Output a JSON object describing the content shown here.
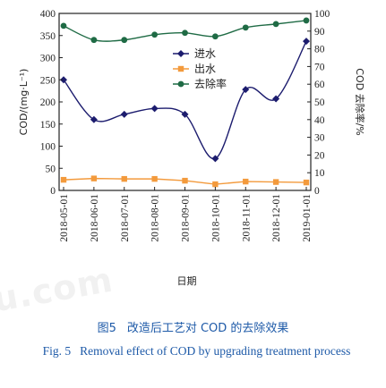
{
  "chart_data": {
    "type": "line",
    "x": [
      "2018-05-01",
      "2018-06-01",
      "2018-07-01",
      "2018-08-01",
      "2018-09-01",
      "2018-10-01",
      "2018-11-01",
      "2018-12-01",
      "2019-01-01"
    ],
    "xlabel": "日期",
    "ylabel": "COD/(mg·L⁻¹)",
    "y2label": "COD 去除率/%",
    "ylim": [
      0,
      400
    ],
    "y2lim": [
      0,
      100
    ],
    "yticks": [
      0,
      50,
      100,
      150,
      200,
      250,
      300,
      350,
      400
    ],
    "y2ticks": [
      0,
      10,
      20,
      30,
      40,
      50,
      60,
      70,
      80,
      90,
      100
    ],
    "legend_placement": "center-right",
    "series": [
      {
        "name": "进水",
        "axis": "left",
        "color": "#1c1c6e",
        "marker": "diamond",
        "smooth": true,
        "values": [
          250,
          160,
          172,
          185,
          172,
          72,
          228,
          207,
          337
        ]
      },
      {
        "name": "出水",
        "axis": "left",
        "color": "#f39a3c",
        "marker": "square",
        "smooth": false,
        "values": [
          24,
          27,
          26,
          26,
          22,
          14,
          20,
          19,
          18
        ]
      },
      {
        "name": "去除率",
        "axis": "right",
        "color": "#1f6b45",
        "marker": "circle",
        "smooth": true,
        "values": [
          93,
          85,
          85,
          88,
          89,
          87,
          92,
          94,
          96
        ]
      }
    ]
  },
  "caption": {
    "cn_number": "图5",
    "cn_text": "改造后工艺对 COD 的去除效果",
    "en_number": "Fig. 5",
    "en_text": "Removal effect of COD by upgrading treatment process"
  },
  "watermark": "u.com"
}
